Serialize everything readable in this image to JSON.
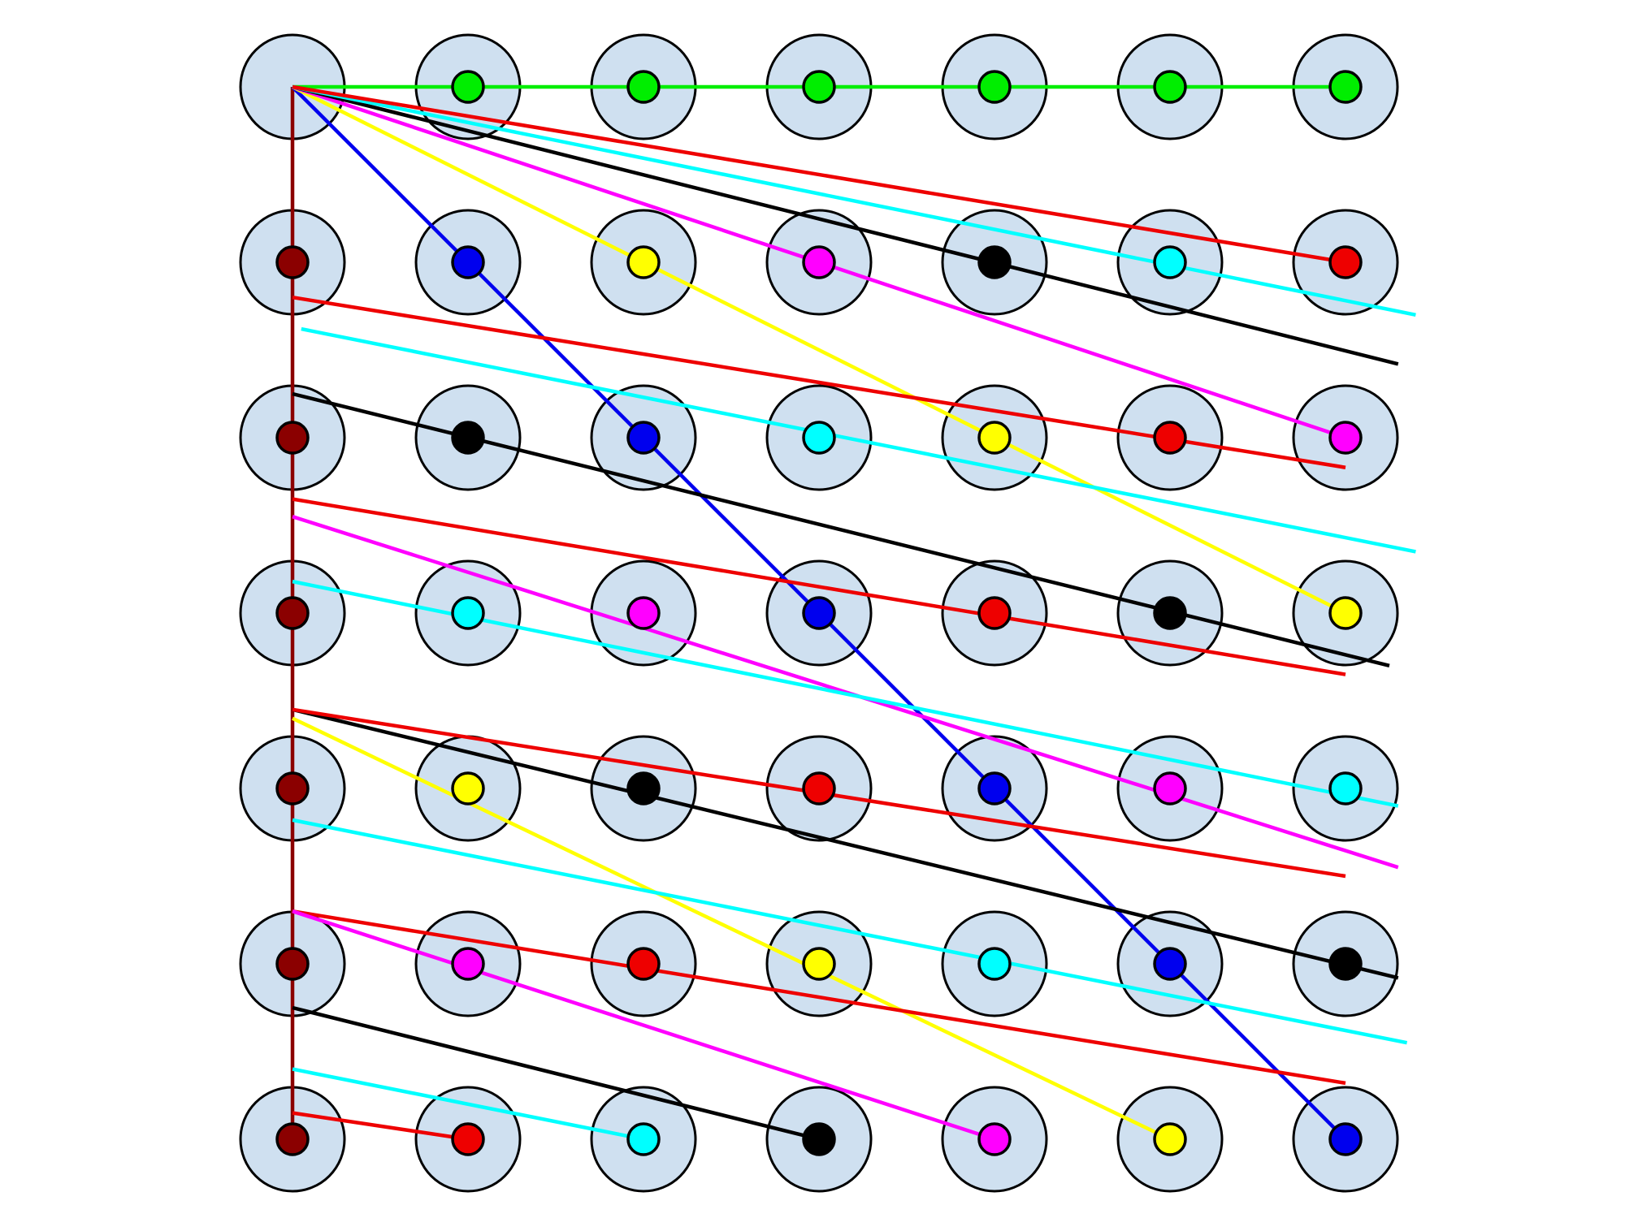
{
  "colors": {
    "cell_fill": "#cfe0f0",
    "outline": "#000000",
    "background": "#ffffff"
  },
  "grid": {
    "rows": 7,
    "cols": 7,
    "dots": [
      [
        null,
        "#00ee00",
        "#00ee00",
        "#00ee00",
        "#00ee00",
        "#00ee00",
        "#00ee00"
      ],
      [
        "#8b0000",
        "#0000ee",
        "#ffff00",
        "#ff00ff",
        "#000000",
        "#00ffff",
        "#ee0000"
      ],
      [
        "#8b0000",
        "#000000",
        "#0000ee",
        "#00ffff",
        "#ffff00",
        "#ee0000",
        "#ff00ff"
      ],
      [
        "#8b0000",
        "#00ffff",
        "#ff00ff",
        "#0000ee",
        "#ee0000",
        "#000000",
        "#ffff00"
      ],
      [
        "#8b0000",
        "#ffff00",
        "#000000",
        "#ee0000",
        "#0000ee",
        "#ff00ff",
        "#00ffff"
      ],
      [
        "#8b0000",
        "#ff00ff",
        "#ee0000",
        "#ffff00",
        "#00ffff",
        "#0000ee",
        "#000000"
      ],
      [
        "#8b0000",
        "#ee0000",
        "#00ffff",
        "#000000",
        "#ff00ff",
        "#ffff00",
        "#0000ee"
      ]
    ]
  },
  "lines": [
    {
      "name": "green-line",
      "color": "#00ee00",
      "from": [
        0,
        0
      ],
      "to": [
        0,
        6
      ]
    },
    {
      "name": "darkred-line",
      "color": "#8b0000",
      "from": [
        0,
        0
      ],
      "to": [
        6,
        0
      ]
    },
    {
      "name": "blue-line",
      "color": "#0000ee",
      "from": [
        0,
        0
      ],
      "to": [
        6,
        6
      ]
    },
    {
      "name": "yellow-line-1",
      "color": "#ffff00",
      "from": [
        0,
        0
      ],
      "to": [
        3,
        6
      ]
    },
    {
      "name": "magenta-line-1",
      "color": "#ff00ff",
      "from": [
        0,
        0
      ],
      "to": [
        2,
        6
      ]
    },
    {
      "name": "black-line-1",
      "color": "#000000",
      "from": [
        0,
        0
      ],
      "to": [
        1.58,
        6.3
      ]
    },
    {
      "name": "cyan-line-1",
      "color": "#00ffff",
      "from": [
        0,
        0
      ],
      "to": [
        1.3,
        6.4
      ]
    },
    {
      "name": "red-line-1",
      "color": "#ee0000",
      "from": [
        0,
        0
      ],
      "to": [
        1,
        6
      ]
    },
    {
      "name": "red-line-2",
      "color": "#ee0000",
      "from": [
        1.2,
        0
      ],
      "to": [
        2.17,
        6
      ]
    },
    {
      "name": "cyan-line-2",
      "color": "#00ffff",
      "from": [
        1.38,
        0.05
      ],
      "to": [
        2.65,
        6.4
      ]
    },
    {
      "name": "black-line-2",
      "color": "#000000",
      "from": [
        1.75,
        0
      ],
      "to": [
        3.3,
        6.25
      ]
    },
    {
      "name": "red-line-3",
      "color": "#ee0000",
      "from": [
        2.35,
        0
      ],
      "to": [
        3.35,
        6
      ]
    },
    {
      "name": "magenta-line-2",
      "color": "#ff00ff",
      "from": [
        2.45,
        0
      ],
      "to": [
        4.45,
        6.3
      ]
    },
    {
      "name": "cyan-line-3",
      "color": "#00ffff",
      "from": [
        2.82,
        0
      ],
      "to": [
        4.1,
        6.3
      ]
    },
    {
      "name": "yellow-line-2",
      "color": "#ffff00",
      "from": [
        3.6,
        0
      ],
      "to": [
        6.0,
        5
      ]
    },
    {
      "name": "black-line-3",
      "color": "#000000",
      "from": [
        3.55,
        0
      ],
      "to": [
        5.08,
        6.3
      ]
    },
    {
      "name": "red-line-4",
      "color": "#ee0000",
      "from": [
        3.55,
        0
      ],
      "to": [
        4.5,
        6
      ]
    },
    {
      "name": "cyan-line-4",
      "color": "#00ffff",
      "from": [
        4.18,
        0
      ],
      "to": [
        5.45,
        6.35
      ]
    },
    {
      "name": "red-line-5",
      "color": "#ee0000",
      "from": [
        4.7,
        0
      ],
      "to": [
        5.68,
        6
      ]
    },
    {
      "name": "magenta-line-3",
      "color": "#ff00ff",
      "from": [
        4.7,
        0
      ],
      "to": [
        6.0,
        4
      ]
    },
    {
      "name": "black-line-4",
      "color": "#000000",
      "from": [
        5.25,
        0
      ],
      "to": [
        6.0,
        3
      ]
    },
    {
      "name": "cyan-line-5",
      "color": "#00ffff",
      "from": [
        5.6,
        0
      ],
      "to": [
        6.0,
        2
      ]
    },
    {
      "name": "red-line-6",
      "color": "#ee0000",
      "from": [
        5.85,
        0
      ],
      "to": [
        6.0,
        1
      ]
    }
  ]
}
